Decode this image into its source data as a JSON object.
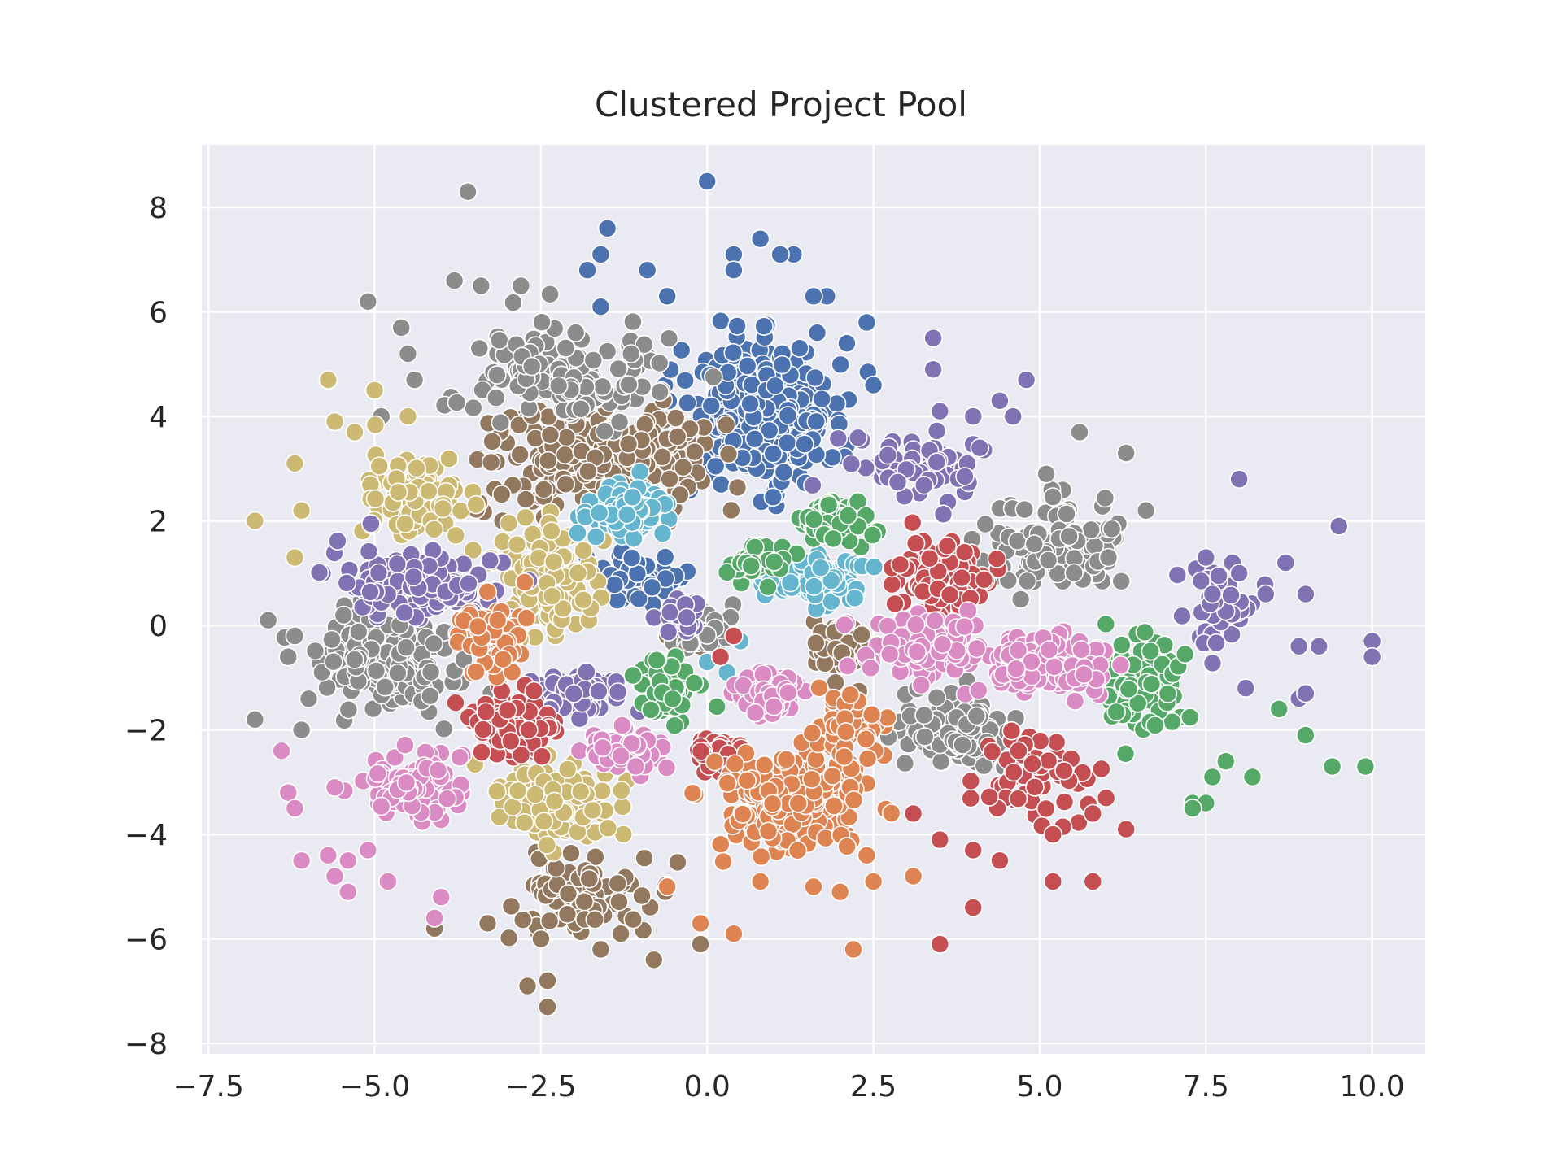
{
  "chart_data": {
    "type": "scatter",
    "title": "Clustered Project Pool",
    "xlabel": "",
    "ylabel": "",
    "xlim": [
      -7.6,
      10.8
    ],
    "ylim": [
      -8.2,
      9.2
    ],
    "xticks": [
      -7.5,
      -5.0,
      -2.5,
      0.0,
      2.5,
      5.0,
      7.5,
      10.0
    ],
    "yticks": [
      -8,
      -6,
      -4,
      -2,
      0,
      2,
      4,
      6,
      8
    ],
    "xtick_labels": [
      "−7.5",
      "−5.0",
      "−2.5",
      "0.0",
      "2.5",
      "5.0",
      "7.5",
      "10.0"
    ],
    "ytick_labels": [
      "−8",
      "−6",
      "−4",
      "−2",
      "0",
      "2",
      "4",
      "6",
      "8"
    ],
    "grid": true,
    "background": "#eaeaf2",
    "marker_edge": "#ffffff",
    "palette": [
      "#4c72b0",
      "#dd8452",
      "#55a868",
      "#c44e52",
      "#8172b3",
      "#937860",
      "#da8bc3",
      "#8c8c8c",
      "#ccb974",
      "#64b5cd"
    ],
    "clusters": [
      {
        "color": "#4c72b0",
        "center": [
          0.8,
          4.0
        ],
        "spread": [
          1.0,
          1.2
        ],
        "count": 320,
        "outliers": [
          [
            -1.5,
            7.6
          ],
          [
            0.0,
            8.5
          ],
          [
            0.8,
            7.4
          ],
          [
            1.3,
            7.1
          ],
          [
            -1.8,
            6.8
          ],
          [
            1.8,
            6.3
          ],
          [
            2.4,
            5.8
          ],
          [
            2.5,
            4.6
          ],
          [
            -1.6,
            7.1
          ],
          [
            0.4,
            7.1
          ],
          [
            1.1,
            7.1
          ],
          [
            -0.9,
            6.8
          ],
          [
            0.4,
            6.8
          ],
          [
            1.6,
            6.3
          ],
          [
            -0.6,
            6.3
          ],
          [
            2.1,
            5.4
          ],
          [
            -1.6,
            6.1
          ]
        ]
      },
      {
        "color": "#4c72b0",
        "center": [
          -1.1,
          0.9
        ],
        "spread": [
          0.5,
          0.45
        ],
        "count": 70,
        "outliers": []
      },
      {
        "color": "#937860",
        "center": [
          -1.6,
          3.2
        ],
        "spread": [
          1.5,
          0.9
        ],
        "count": 280,
        "outliers": [
          [
            -0.3,
            0.3
          ],
          [
            -0.6,
            -0.2
          ],
          [
            -0.1,
            -0.4
          ]
        ]
      },
      {
        "color": "#937860",
        "center": [
          -1.8,
          -5.2
        ],
        "spread": [
          1.0,
          0.6
        ],
        "count": 90,
        "outliers": [
          [
            -2.7,
            -6.9
          ],
          [
            -2.4,
            -6.8
          ],
          [
            -2.4,
            -7.3
          ],
          [
            -4.1,
            -5.8
          ],
          [
            -0.8,
            -6.4
          ],
          [
            -1.6,
            -6.2
          ],
          [
            -0.1,
            -6.1
          ],
          [
            -2.5,
            -6.0
          ],
          [
            -3.3,
            -5.7
          ],
          [
            -1.3,
            -5.9
          ]
        ]
      },
      {
        "color": "#937860",
        "center": [
          1.9,
          -0.5
        ],
        "spread": [
          0.3,
          0.6
        ],
        "count": 45,
        "outliers": []
      },
      {
        "color": "#8c8c8c",
        "center": [
          -2.2,
          4.8
        ],
        "spread": [
          1.3,
          0.9
        ],
        "count": 150,
        "outliers": [
          [
            -3.6,
            8.3
          ],
          [
            -5.1,
            6.2
          ],
          [
            -3.8,
            6.6
          ],
          [
            -3.4,
            6.5
          ],
          [
            -2.8,
            6.5
          ],
          [
            -4.6,
            5.7
          ],
          [
            -4.5,
            5.2
          ],
          [
            -4.4,
            4.7
          ],
          [
            -4.9,
            4.0
          ]
        ]
      },
      {
        "color": "#8c8c8c",
        "center": [
          -4.8,
          -0.7
        ],
        "spread": [
          0.9,
          0.8
        ],
        "count": 180,
        "outliers": [
          [
            -6.6,
            0.1
          ],
          [
            -6.8,
            -1.8
          ],
          [
            -6.2,
            -0.2
          ],
          [
            -6.3,
            -0.6
          ],
          [
            -6.1,
            -2.0
          ]
        ]
      },
      {
        "color": "#8c8c8c",
        "center": [
          3.7,
          -2.0
        ],
        "spread": [
          0.8,
          0.6
        ],
        "count": 140,
        "outliers": []
      },
      {
        "color": "#8c8c8c",
        "center": [
          5.2,
          1.5
        ],
        "spread": [
          0.9,
          0.8
        ],
        "count": 120,
        "outliers": [
          [
            5.6,
            3.7
          ],
          [
            6.3,
            3.3
          ],
          [
            5.1,
            2.9
          ],
          [
            6.6,
            2.2
          ]
        ]
      },
      {
        "color": "#8c8c8c",
        "center": [
          -0.1,
          -0.1
        ],
        "spread": [
          0.45,
          0.4
        ],
        "count": 40,
        "outliers": []
      },
      {
        "color": "#ccb974",
        "center": [
          -4.3,
          2.4
        ],
        "spread": [
          0.8,
          0.8
        ],
        "count": 90,
        "outliers": [
          [
            -6.8,
            2.0
          ],
          [
            -5.7,
            4.7
          ],
          [
            -5.0,
            4.5
          ],
          [
            -5.6,
            3.9
          ],
          [
            -6.2,
            3.1
          ],
          [
            -6.1,
            2.2
          ],
          [
            -6.2,
            1.3
          ],
          [
            -4.5,
            4.0
          ],
          [
            -5.3,
            3.7
          ]
        ]
      },
      {
        "color": "#ccb974",
        "center": [
          -2.5,
          0.8
        ],
        "spread": [
          0.7,
          0.9
        ],
        "count": 140,
        "outliers": []
      },
      {
        "color": "#ccb974",
        "center": [
          -2.3,
          -3.4
        ],
        "spread": [
          0.8,
          0.6
        ],
        "count": 130,
        "outliers": []
      },
      {
        "color": "#8172b3",
        "center": [
          -4.4,
          0.8
        ],
        "spread": [
          1.0,
          0.6
        ],
        "count": 140,
        "outliers": []
      },
      {
        "color": "#8172b3",
        "center": [
          -1.9,
          -1.3
        ],
        "spread": [
          0.6,
          0.4
        ],
        "count": 80,
        "outliers": []
      },
      {
        "color": "#8172b3",
        "center": [
          3.3,
          3.0
        ],
        "spread": [
          0.9,
          0.6
        ],
        "count": 70,
        "outliers": [
          [
            3.4,
            5.5
          ],
          [
            3.4,
            4.9
          ],
          [
            4.8,
            4.7
          ],
          [
            4.4,
            4.3
          ],
          [
            3.5,
            4.1
          ],
          [
            4.0,
            4.0
          ],
          [
            4.6,
            4.0
          ],
          [
            4.1,
            3.4
          ]
        ]
      },
      {
        "color": "#8172b3",
        "center": [
          7.7,
          0.3
        ],
        "spread": [
          0.6,
          0.6
        ],
        "count": 40,
        "outliers": [
          [
            8.0,
            2.8
          ],
          [
            9.5,
            1.9
          ],
          [
            10.0,
            -0.3
          ],
          [
            10.0,
            -0.6
          ],
          [
            8.7,
            1.2
          ],
          [
            9.2,
            -0.4
          ],
          [
            8.9,
            -0.4
          ],
          [
            9.0,
            0.6
          ],
          [
            8.9,
            -1.4
          ],
          [
            9.0,
            -1.3
          ],
          [
            8.4,
            0.6
          ],
          [
            8.1,
            -1.2
          ],
          [
            7.5,
            1.3
          ],
          [
            7.9,
            1.2
          ],
          [
            8.0,
            1.0
          ],
          [
            7.6,
            0.6
          ]
        ]
      },
      {
        "color": "#8172b3",
        "center": [
          -0.3,
          0.1
        ],
        "spread": [
          0.3,
          0.3
        ],
        "count": 25,
        "outliers": []
      },
      {
        "color": "#64b5cd",
        "center": [
          -1.2,
          2.2
        ],
        "spread": [
          0.5,
          0.4
        ],
        "count": 130,
        "outliers": []
      },
      {
        "color": "#64b5cd",
        "center": [
          1.6,
          0.9
        ],
        "spread": [
          0.6,
          0.35
        ],
        "count": 90,
        "outliers": [
          [
            0.3,
            -0.9
          ],
          [
            0.0,
            -0.7
          ],
          [
            0.5,
            -0.3
          ]
        ]
      },
      {
        "color": "#55a868",
        "center": [
          1.9,
          2.0
        ],
        "spread": [
          0.5,
          0.4
        ],
        "count": 90,
        "outliers": []
      },
      {
        "color": "#55a868",
        "center": [
          0.8,
          1.2
        ],
        "spread": [
          0.4,
          0.3
        ],
        "count": 40,
        "outliers": []
      },
      {
        "color": "#55a868",
        "center": [
          -0.6,
          -1.2
        ],
        "spread": [
          0.4,
          0.5
        ],
        "count": 70,
        "outliers": []
      },
      {
        "color": "#55a868",
        "center": [
          6.5,
          -1.1
        ],
        "spread": [
          0.6,
          0.8
        ],
        "count": 90,
        "outliers": [
          [
            9.4,
            -2.7
          ],
          [
            9.9,
            -2.7
          ],
          [
            8.2,
            -2.9
          ],
          [
            7.3,
            -3.4
          ],
          [
            7.5,
            -3.4
          ],
          [
            7.6,
            -2.9
          ],
          [
            8.6,
            -1.6
          ],
          [
            9.0,
            -2.1
          ],
          [
            7.8,
            -2.6
          ],
          [
            7.3,
            -3.5
          ]
        ]
      },
      {
        "color": "#c44e52",
        "center": [
          3.6,
          0.9
        ],
        "spread": [
          0.6,
          0.6
        ],
        "count": 110,
        "outliers": []
      },
      {
        "color": "#c44e52",
        "center": [
          -2.9,
          -1.9
        ],
        "spread": [
          0.6,
          0.5
        ],
        "count": 120,
        "outliers": []
      },
      {
        "color": "#c44e52",
        "center": [
          0.2,
          -2.5
        ],
        "spread": [
          0.45,
          0.3
        ],
        "count": 60,
        "outliers": [
          [
            0.4,
            -0.2
          ],
          [
            0.2,
            -0.6
          ]
        ]
      },
      {
        "color": "#c44e52",
        "center": [
          4.8,
          -3.0
        ],
        "spread": [
          0.9,
          0.7
        ],
        "count": 60,
        "outliers": [
          [
            3.5,
            -6.1
          ],
          [
            4.0,
            -5.4
          ],
          [
            5.2,
            -4.9
          ],
          [
            5.8,
            -4.9
          ],
          [
            4.4,
            -4.5
          ],
          [
            4.0,
            -4.3
          ],
          [
            5.2,
            -4.0
          ],
          [
            6.3,
            -3.9
          ],
          [
            6.0,
            -3.3
          ],
          [
            5.8,
            -3.6
          ],
          [
            3.1,
            -3.6
          ],
          [
            3.5,
            -4.1
          ]
        ]
      },
      {
        "color": "#da8bc3",
        "center": [
          3.3,
          -0.4
        ],
        "spread": [
          0.8,
          0.5
        ],
        "count": 130,
        "outliers": []
      },
      {
        "color": "#da8bc3",
        "center": [
          5.2,
          -0.8
        ],
        "spread": [
          0.8,
          0.55
        ],
        "count": 130,
        "outliers": []
      },
      {
        "color": "#da8bc3",
        "center": [
          0.9,
          -1.3
        ],
        "spread": [
          0.45,
          0.4
        ],
        "count": 90,
        "outliers": []
      },
      {
        "color": "#da8bc3",
        "center": [
          -1.2,
          -2.4
        ],
        "spread": [
          0.5,
          0.35
        ],
        "count": 60,
        "outliers": []
      },
      {
        "color": "#da8bc3",
        "center": [
          -4.4,
          -3.1
        ],
        "spread": [
          0.8,
          0.6
        ],
        "count": 90,
        "outliers": [
          [
            -6.3,
            -3.2
          ],
          [
            -6.4,
            -2.4
          ],
          [
            -6.2,
            -3.5
          ],
          [
            -6.1,
            -4.5
          ],
          [
            -5.7,
            -4.4
          ],
          [
            -5.4,
            -5.1
          ],
          [
            -5.4,
            -4.5
          ],
          [
            -5.6,
            -4.8
          ],
          [
            -4.8,
            -4.9
          ],
          [
            -4.0,
            -5.2
          ],
          [
            -4.1,
            -5.6
          ],
          [
            -5.1,
            -4.3
          ],
          [
            -5.6,
            -3.1
          ]
        ]
      },
      {
        "color": "#dd8452",
        "center": [
          -3.2,
          -0.2
        ],
        "spread": [
          0.5,
          0.6
        ],
        "count": 70,
        "outliers": []
      },
      {
        "color": "#dd8452",
        "center": [
          1.3,
          -3.3
        ],
        "spread": [
          1.0,
          0.8
        ],
        "count": 230,
        "outliers": [
          [
            2.2,
            -6.2
          ],
          [
            0.4,
            -5.9
          ],
          [
            -0.1,
            -5.7
          ],
          [
            2.0,
            -5.1
          ],
          [
            2.5,
            -4.9
          ],
          [
            3.1,
            -4.8
          ],
          [
            1.6,
            -5.0
          ],
          [
            0.8,
            -4.9
          ],
          [
            -0.6,
            -5.0
          ],
          [
            2.4,
            -4.4
          ]
        ]
      },
      {
        "color": "#dd8452",
        "center": [
          2.1,
          -2.0
        ],
        "spread": [
          0.5,
          0.5
        ],
        "count": 60,
        "outliers": []
      }
    ]
  }
}
